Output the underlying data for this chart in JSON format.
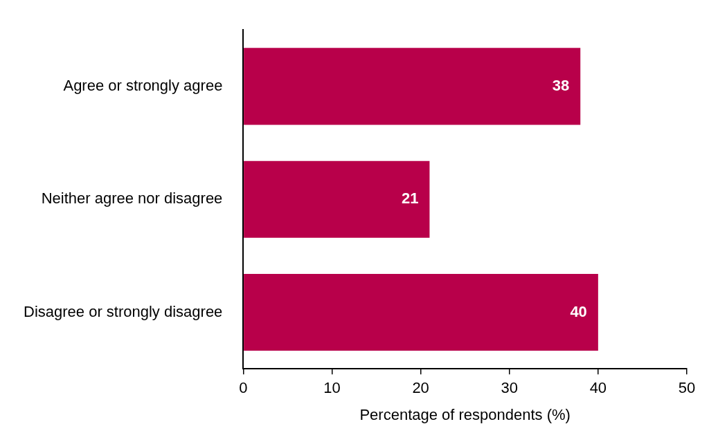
{
  "chart_data": {
    "type": "bar",
    "orientation": "horizontal",
    "xlabel": "Percentage of respondents (%)",
    "categories": [
      "Agree or strongly agree",
      "Neither agree nor disagree",
      "Disagree or strongly disagree"
    ],
    "values": [
      38,
      21,
      40
    ],
    "color": "#b8004a",
    "xlim": [
      0,
      50
    ],
    "xticks": [
      0,
      10,
      20,
      30,
      40,
      50
    ],
    "grid": false,
    "legend": false,
    "data_labels": true
  }
}
